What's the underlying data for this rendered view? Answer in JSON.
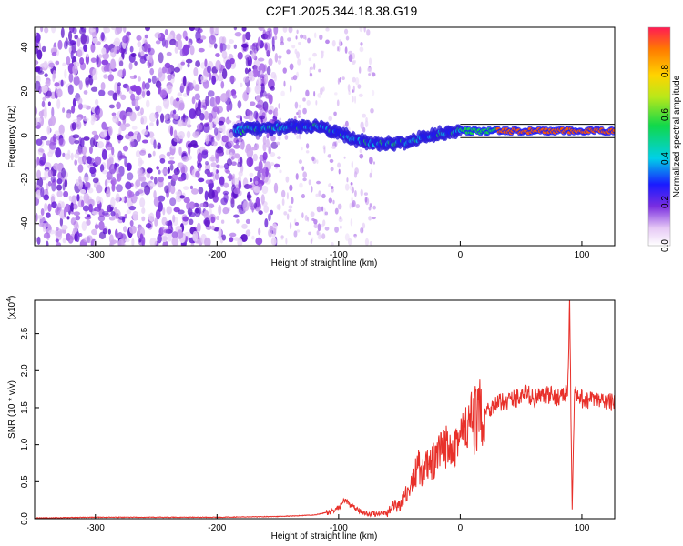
{
  "title": "C2E1.2025.344.18.38.G19",
  "chart_data": [
    {
      "type": "heatmap",
      "xlabel": "Height of straight line (km)",
      "ylabel": "Frequency (Hz)",
      "xlim": [
        -350,
        127
      ],
      "ylim": [
        -50,
        49
      ],
      "xticks": [
        -300,
        -200,
        -100,
        0,
        100
      ],
      "yticks": [
        -40,
        -20,
        0,
        20,
        40
      ],
      "colorbar": {
        "label": "Normalized spectral amplitude",
        "ticks": [
          0.0,
          0.2,
          0.4,
          0.6,
          0.8
        ],
        "range": [
          0,
          1
        ]
      },
      "ridge": {
        "x": [
          -180,
          -160,
          -140,
          -120,
          -100,
          -80,
          -60,
          -45,
          -30,
          -15,
          0,
          30,
          60,
          90,
          127
        ],
        "y": [
          3,
          3,
          4,
          4,
          1,
          -3,
          -4,
          -3,
          -1,
          1,
          2,
          2,
          2,
          2,
          2
        ]
      }
    },
    {
      "type": "line",
      "xlabel": "Height of straight line (km)",
      "ylabel": "SNR (10 * v/v)",
      "yscale_label": "(x10",
      "yscale_exp": "4",
      "xlim": [
        -350,
        127
      ],
      "ylim": [
        0,
        2.95
      ],
      "xticks": [
        -300,
        -200,
        -100,
        0,
        100
      ],
      "yticks": [
        0.0,
        0.5,
        1.0,
        1.5,
        2.0,
        2.5
      ],
      "series": [
        {
          "color": "#e8302a",
          "x": [
            -350,
            -300,
            -250,
            -200,
            -150,
            -120,
            -105,
            -100,
            -95,
            -85,
            -75,
            -60,
            -50,
            -40,
            -35,
            -30,
            -20,
            -10,
            0,
            10,
            20,
            30,
            40,
            50,
            55,
            60,
            70,
            80,
            88,
            90,
            92,
            94,
            96,
            110,
            127
          ],
          "y": [
            0.01,
            0.02,
            0.02,
            0.02,
            0.03,
            0.05,
            0.1,
            0.15,
            0.25,
            0.12,
            0.06,
            0.08,
            0.2,
            0.45,
            0.7,
            0.65,
            0.8,
            1.0,
            1.1,
            1.3,
            1.45,
            1.55,
            1.6,
            1.65,
            1.7,
            1.62,
            1.66,
            1.65,
            1.68,
            2.85,
            0.1,
            1.75,
            1.62,
            1.6,
            1.57
          ]
        }
      ]
    }
  ]
}
